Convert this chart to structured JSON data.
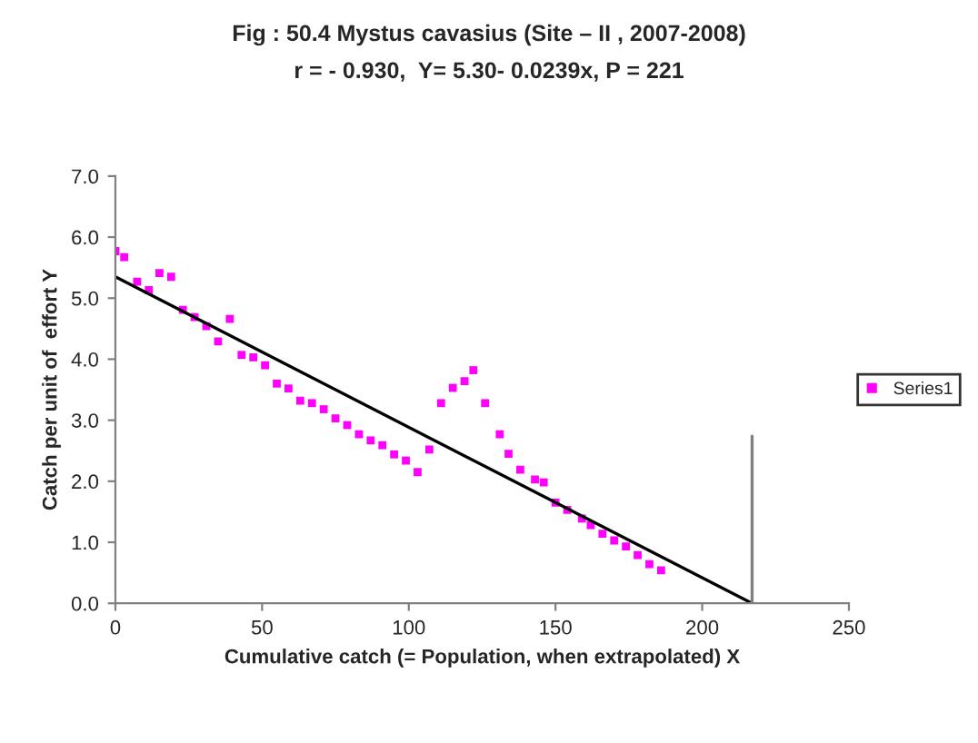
{
  "chart_data": {
    "type": "scatter",
    "title": "Fig : 50.4 Mystus cavasius (Site – II , 2007-2008)",
    "subtitle": "r = - 0.930,  Y= 5.30- 0.0239x, P = 221",
    "xlabel": "Cumulative catch (= Population, when extrapolated) X",
    "ylabel": "Catch per unit of  effort Y",
    "series": [
      {
        "name": "Series1",
        "color": "#ff00ff",
        "marker": "square",
        "x": [
          0,
          3,
          7.4,
          11.4,
          15,
          19,
          23,
          27,
          31,
          35,
          39,
          43,
          47,
          51,
          55,
          59,
          63,
          67,
          71,
          75,
          79,
          83,
          87,
          91,
          95,
          99,
          103,
          107,
          111,
          115,
          119,
          122,
          126,
          131,
          134,
          138,
          143,
          146,
          150,
          154,
          159,
          162,
          166,
          170,
          174,
          178,
          182,
          186
        ],
        "values": [
          5.77,
          5.67,
          5.27,
          5.13,
          5.41,
          5.35,
          4.81,
          4.69,
          4.54,
          4.29,
          4.66,
          4.07,
          4.03,
          3.9,
          3.6,
          3.52,
          3.32,
          3.28,
          3.18,
          3.03,
          2.92,
          2.77,
          2.67,
          2.59,
          2.44,
          2.34,
          2.15,
          2.52,
          3.28,
          3.53,
          3.64,
          3.82,
          3.28,
          2.77,
          2.45,
          2.19,
          2.03,
          1.98,
          1.65,
          1.53,
          1.39,
          1.28,
          1.14,
          1.03,
          0.93,
          0.79,
          0.64,
          0.54
        ]
      },
      {
        "type": "line",
        "color": "#000000",
        "x": [
          0,
          217
        ],
        "values": [
          5.35,
          0
        ]
      },
      {
        "type": "line",
        "color": "#808080",
        "x": [
          217,
          217
        ],
        "values": [
          2.74,
          0
        ]
      }
    ],
    "xlim": [
      0,
      250
    ],
    "xticks": [
      0,
      50,
      100,
      150,
      200,
      250
    ],
    "ylim": [
      0,
      7
    ],
    "yticks": [
      {
        "value": 0,
        "label": "0.0"
      },
      {
        "value": 1,
        "label": "1.0"
      },
      {
        "value": 2,
        "label": "2.0"
      },
      {
        "value": 3,
        "label": "3.0"
      },
      {
        "value": 4,
        "label": "4.0"
      },
      {
        "value": 5,
        "label": "5.0"
      },
      {
        "value": 6,
        "label": "6.0"
      },
      {
        "value": 7,
        "label": "7.0"
      }
    ],
    "grid": false,
    "legend": "right"
  }
}
